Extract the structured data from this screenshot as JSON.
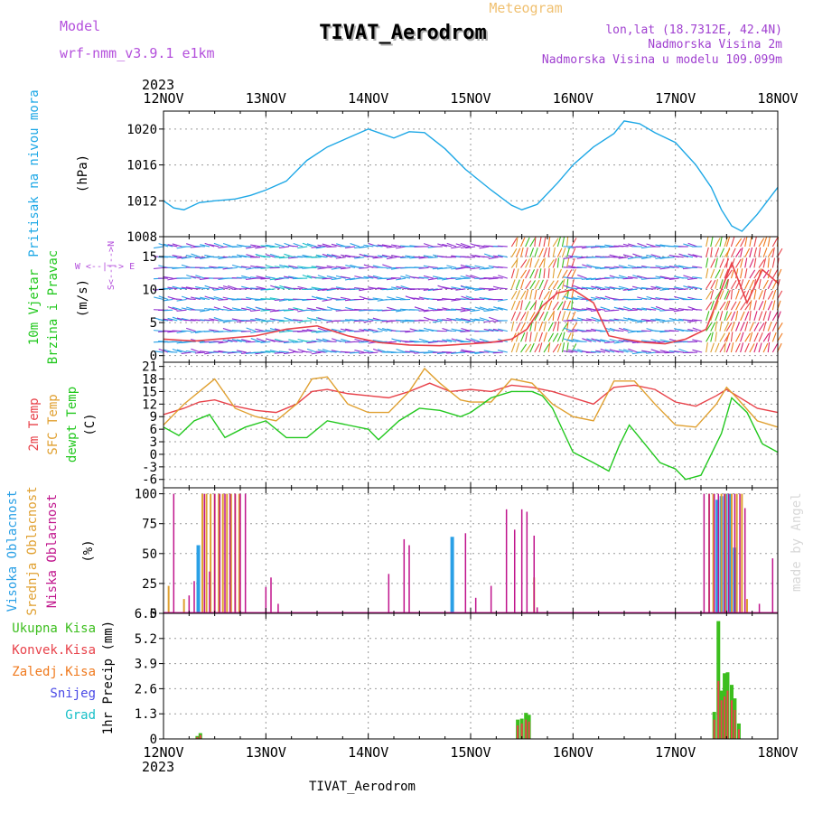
{
  "header": {
    "model_label": "Model",
    "model_name": "wrf-nmm_v3.9.1 e1km",
    "meteogram_label": "Meteogram",
    "station_title": "TIVAT_Aerodrom",
    "lonlat": "lon,lat (18.7312E, 42.4N)",
    "altitude": "Nadmorska Visina 2m",
    "model_altitude": "Nadmorska Visina u modelu 109.099m",
    "footer_station": "TIVAT_Aerodrom",
    "watermark": "made by Angel"
  },
  "colors": {
    "pressure": "#1ea8e6",
    "temp2m": "#e8424a",
    "sfc_temp": "#e0a030",
    "dewpt": "#22c81e",
    "high_cloud": "#2aa0e6",
    "mid_cloud": "#e0a030",
    "low_cloud": "#c0148c",
    "precip_total": "#3cbe1e",
    "precip_conv": "#e8424a",
    "grid": "#9a9a9a",
    "model_text": "#b450dc",
    "lonlat_text": "#a040d0",
    "meteogram_text": "#f0c070"
  },
  "chart_data": [
    {
      "type": "line",
      "panel": "pressure",
      "title": "",
      "ylabel": [
        "Pritisak na nivou mora",
        "(hPa)"
      ],
      "x_ticks": [
        "12NOV",
        "13NOV",
        "14NOV",
        "15NOV",
        "16NOV",
        "17NOV",
        "18NOV"
      ],
      "x_year": "2023",
      "xlim_days": [
        0,
        6
      ],
      "ylim": [
        1008,
        1022
      ],
      "y_ticks": [
        "1008",
        "1012",
        "1016",
        "1020"
      ],
      "y_tick_values": [
        1008,
        1012,
        1016,
        1020
      ],
      "grid": true,
      "series": [
        {
          "x": [
            0,
            0.1,
            0.2,
            0.35,
            0.5,
            0.7,
            0.85,
            1.0,
            1.2,
            1.4,
            1.6,
            1.8,
            2.0,
            2.1,
            2.25,
            2.4,
            2.55,
            2.75,
            2.95,
            3.2,
            3.4,
            3.5,
            3.65,
            3.85,
            4.0,
            4.2,
            4.4,
            4.5,
            4.65,
            4.8,
            5.0,
            5.2,
            5.35,
            5.45,
            5.55,
            5.65,
            5.8,
            6.0
          ],
          "values": [
            1012,
            1011.2,
            1011.0,
            1011.8,
            1012.0,
            1012.2,
            1012.6,
            1013.2,
            1014.2,
            1016.5,
            1018.0,
            1019.0,
            1020.0,
            1019.6,
            1019.0,
            1019.7,
            1019.6,
            1017.8,
            1015.5,
            1013.2,
            1011.5,
            1011.0,
            1011.6,
            1014.0,
            1016.0,
            1018.0,
            1019.5,
            1020.9,
            1020.6,
            1019.6,
            1018.5,
            1016.0,
            1013.5,
            1011.0,
            1009.2,
            1008.6,
            1010.5,
            1013.5
          ]
        }
      ]
    },
    {
      "type": "line",
      "panel": "wind",
      "title": "",
      "ylabel": [
        "10m Vjetar",
        "Brzina i Pravac",
        "(m/s)"
      ],
      "compass": "W <--|--> E",
      "compass_ns": "S<--|-->N",
      "ylim": [
        -1,
        18
      ],
      "y_ticks": [
        "0",
        "5",
        "10",
        "15"
      ],
      "y_tick_values": [
        0,
        5,
        10,
        15
      ],
      "grid": true,
      "series": [
        {
          "name": "speed",
          "x": [
            0,
            0.3,
            0.6,
            0.9,
            1.2,
            1.5,
            1.8,
            2.1,
            2.4,
            2.7,
            3.0,
            3.2,
            3.4,
            3.55,
            3.7,
            3.85,
            4.0,
            4.2,
            4.35,
            4.5,
            4.7,
            4.9,
            5.1,
            5.3,
            5.45,
            5.55,
            5.7,
            5.85,
            6.0
          ],
          "values": [
            2.5,
            2.2,
            2.6,
            3.0,
            4.0,
            4.5,
            3.0,
            2.0,
            1.6,
            1.5,
            1.8,
            2.0,
            2.5,
            4.0,
            7.5,
            9.5,
            10.0,
            8.0,
            3.0,
            2.5,
            2.0,
            1.8,
            2.5,
            4.0,
            10.0,
            14.0,
            8.0,
            13.0,
            11.0
          ]
        }
      ]
    },
    {
      "type": "line",
      "panel": "temperature",
      "title": "",
      "ylabel": [
        "2m Temp",
        "SFC Temp",
        "dewpt Temp",
        "(C)"
      ],
      "ylim": [
        -8,
        22
      ],
      "y_ticks": [
        "-6",
        "-3",
        "0",
        "3",
        "6",
        "9",
        "12",
        "15",
        "18",
        "21"
      ],
      "y_tick_values": [
        -6,
        -3,
        0,
        3,
        6,
        9,
        12,
        15,
        18,
        21
      ],
      "grid": true,
      "series": [
        {
          "name": "2m Temp",
          "x": [
            0,
            0.2,
            0.35,
            0.5,
            0.7,
            0.9,
            1.1,
            1.3,
            1.45,
            1.6,
            1.8,
            2.0,
            2.2,
            2.4,
            2.6,
            2.8,
            3.0,
            3.2,
            3.4,
            3.6,
            3.8,
            4.0,
            4.2,
            4.4,
            4.6,
            4.8,
            5.0,
            5.2,
            5.4,
            5.5,
            5.6,
            5.8,
            6.0
          ],
          "values": [
            9.5,
            11.0,
            12.5,
            13.0,
            11.5,
            10.5,
            10.0,
            12.0,
            15.0,
            15.5,
            14.5,
            14.0,
            13.5,
            15.0,
            17.0,
            15.0,
            15.5,
            15.0,
            16.5,
            16.0,
            15.0,
            13.5,
            12.0,
            16.0,
            16.5,
            15.5,
            12.5,
            11.5,
            14.0,
            15.5,
            14.0,
            11.0,
            10.0
          ]
        },
        {
          "name": "SFC Temp",
          "x": [
            0,
            0.2,
            0.35,
            0.5,
            0.7,
            0.9,
            1.1,
            1.3,
            1.45,
            1.6,
            1.8,
            2.0,
            2.2,
            2.4,
            2.55,
            2.7,
            2.9,
            3.0,
            3.2,
            3.4,
            3.6,
            3.8,
            4.0,
            4.2,
            4.4,
            4.6,
            4.8,
            5.0,
            5.2,
            5.4,
            5.5,
            5.6,
            5.8,
            6.0
          ],
          "values": [
            7.0,
            12.0,
            15.0,
            18.0,
            11.0,
            9.0,
            8.0,
            12.0,
            18.0,
            18.5,
            12.0,
            10.0,
            10.0,
            15.0,
            20.5,
            17.0,
            13.0,
            12.5,
            12.5,
            18.0,
            17.0,
            12.0,
            9.0,
            8.0,
            17.5,
            17.5,
            12.0,
            7.0,
            6.5,
            12.0,
            16.0,
            13.5,
            8.0,
            6.5
          ]
        },
        {
          "name": "dewpt Temp",
          "x": [
            0,
            0.15,
            0.3,
            0.45,
            0.6,
            0.8,
            1.0,
            1.2,
            1.4,
            1.6,
            1.8,
            2.0,
            2.1,
            2.3,
            2.5,
            2.7,
            2.9,
            3.0,
            3.2,
            3.4,
            3.6,
            3.7,
            3.8,
            4.0,
            4.2,
            4.35,
            4.45,
            4.55,
            4.7,
            4.85,
            5.0,
            5.1,
            5.25,
            5.45,
            5.55,
            5.7,
            5.85,
            6.0
          ],
          "values": [
            6.5,
            4.5,
            8.0,
            9.5,
            4.0,
            6.5,
            8.0,
            4.0,
            4.0,
            8.0,
            7.0,
            6.0,
            3.5,
            8.0,
            11.0,
            10.5,
            9.0,
            10.0,
            13.5,
            15.0,
            15.0,
            14.0,
            11.0,
            0.5,
            -2.0,
            -4.0,
            2.0,
            7.0,
            2.5,
            -2.0,
            -3.5,
            -6.0,
            -5.0,
            5.0,
            13.5,
            10.0,
            2.5,
            0.5
          ]
        }
      ]
    },
    {
      "type": "bar",
      "panel": "clouds",
      "title": "",
      "ylabel": [
        "Visoka Oblacnost",
        "Srednja Oblacnost",
        "Niska Oblacnost",
        "(%)"
      ],
      "ylim": [
        0,
        105
      ],
      "y_ticks": [
        "0",
        "25",
        "50",
        "75",
        "100"
      ],
      "y_tick_values": [
        0,
        25,
        50,
        75,
        100
      ],
      "grid": true,
      "series": [
        {
          "name": "Visoka Oblacnost",
          "x": [
            0.34,
            2.82,
            5.41,
            5.45,
            5.49,
            5.53,
            5.58
          ],
          "values": [
            57,
            64,
            95,
            98,
            100,
            100,
            55
          ]
        },
        {
          "name": "Srednja Oblacnost",
          "x": [
            0.05,
            0.2,
            0.38,
            0.42,
            0.46,
            0.5,
            0.54,
            0.58,
            0.62,
            0.66,
            0.7,
            0.74,
            3.62,
            5.33,
            5.37,
            5.45,
            5.49,
            5.55,
            5.6,
            5.65,
            5.7
          ],
          "values": [
            23,
            12,
            100,
            100,
            100,
            100,
            100,
            100,
            100,
            100,
            100,
            100,
            30,
            100,
            100,
            100,
            100,
            100,
            100,
            100,
            12
          ]
        },
        {
          "name": "Niska Oblacnost",
          "x": [
            0.1,
            0.25,
            0.3,
            0.4,
            0.45,
            0.5,
            0.55,
            0.6,
            0.65,
            0.7,
            0.75,
            0.8,
            1.0,
            1.05,
            1.12,
            2.2,
            2.35,
            2.4,
            2.95,
            3.05,
            3.2,
            3.35,
            3.43,
            3.5,
            3.55,
            3.62,
            3.65,
            5.28,
            5.33,
            5.38,
            5.42,
            5.48,
            5.52,
            5.58,
            5.63,
            5.68,
            5.82,
            5.95
          ],
          "values": [
            100,
            15,
            27,
            100,
            35,
            100,
            100,
            100,
            100,
            100,
            100,
            100,
            22,
            30,
            8,
            33,
            62,
            57,
            67,
            13,
            23,
            87,
            70,
            87,
            85,
            65,
            5,
            100,
            100,
            100,
            100,
            100,
            100,
            100,
            100,
            88,
            8,
            46
          ]
        }
      ]
    },
    {
      "type": "bar",
      "panel": "precipitation",
      "title": "",
      "ylabel": [
        "1hr Precip (mm)"
      ],
      "legend": [
        "Ukupna Kisa",
        "Konvek.Kisa",
        "Zaledj.Kisa",
        "Snijeg",
        "Grad"
      ],
      "ylim": [
        0,
        6.5
      ],
      "y_ticks": [
        "0",
        "1.3",
        "2.6",
        "3.9",
        "5.2",
        "6.5"
      ],
      "y_tick_values": [
        0,
        1.3,
        2.6,
        3.9,
        5.2,
        6.5
      ],
      "grid": true,
      "series": [
        {
          "name": "Ukupna Kisa",
          "x": [
            0.33,
            0.36,
            3.46,
            3.5,
            3.54,
            3.57,
            5.38,
            5.42,
            5.45,
            5.48,
            5.51,
            5.55,
            5.58,
            5.62
          ],
          "values": [
            0.15,
            0.3,
            1.0,
            1.05,
            1.35,
            1.25,
            1.4,
            6.1,
            2.5,
            3.4,
            3.45,
            2.8,
            2.1,
            0.8
          ]
        },
        {
          "name": "Konvek.Kisa",
          "x": [
            0.33,
            0.36,
            3.46,
            3.5,
            3.54,
            3.57,
            5.38,
            5.42,
            5.45,
            5.48,
            5.51,
            5.55,
            5.58,
            5.62
          ],
          "values": [
            0.1,
            0.2,
            0.7,
            0.8,
            1.0,
            0.9,
            1.0,
            3.0,
            2.0,
            2.2,
            2.5,
            2.0,
            1.5,
            0.5
          ]
        }
      ]
    }
  ]
}
